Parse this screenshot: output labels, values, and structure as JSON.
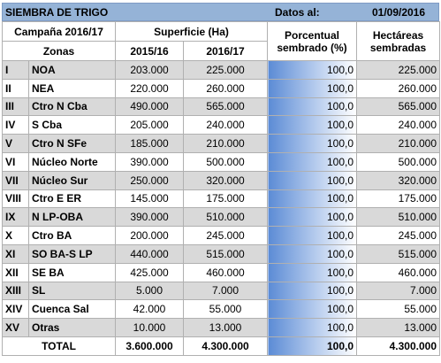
{
  "header": {
    "title": "SIEMBRA DE TRIGO",
    "date_label": "Datos al:",
    "date": "01/09/2016"
  },
  "table": {
    "campaign": "Campaña 2016/17",
    "surface": "Superficie (Ha)",
    "percent": [
      "Porcentual",
      "sembrado (%)"
    ],
    "hectares": [
      "Hectáreas",
      "sembradas"
    ],
    "zones": "Zonas",
    "year1": "2015/16",
    "year2": "2016/17",
    "rows": [
      [
        "I",
        "NOA",
        "203.000",
        "225.000",
        "100,0",
        "225.000"
      ],
      [
        "II",
        "NEA",
        "220.000",
        "260.000",
        "100,0",
        "260.000"
      ],
      [
        "III",
        "Ctro N Cba",
        "490.000",
        "565.000",
        "100,0",
        "565.000"
      ],
      [
        "IV",
        "S Cba",
        "205.000",
        "240.000",
        "100,0",
        "240.000"
      ],
      [
        "V",
        "Ctro N SFe",
        "185.000",
        "210.000",
        "100,0",
        "210.000"
      ],
      [
        "VI",
        "Núcleo Norte",
        "390.000",
        "500.000",
        "100,0",
        "500.000"
      ],
      [
        "VII",
        "Núcleo Sur",
        "250.000",
        "320.000",
        "100,0",
        "320.000"
      ],
      [
        "VIII",
        "Ctro E ER",
        "145.000",
        "175.000",
        "100,0",
        "175.000"
      ],
      [
        "IX",
        "N LP-OBA",
        "390.000",
        "510.000",
        "100,0",
        "510.000"
      ],
      [
        "X",
        "Ctro BA",
        "200.000",
        "245.000",
        "100,0",
        "245.000"
      ],
      [
        "XI",
        "SO BA-S LP",
        "440.000",
        "515.000",
        "100,0",
        "515.000"
      ],
      [
        "XII",
        "SE BA",
        "425.000",
        "460.000",
        "100,0",
        "460.000"
      ],
      [
        "XIII",
        "SL",
        "5.000",
        "7.000",
        "100,0",
        "7.000"
      ],
      [
        "XIV",
        "Cuenca Sal",
        "42.000",
        "55.000",
        "100,0",
        "55.000"
      ],
      [
        "XV",
        "Otras",
        "10.000",
        "13.000",
        "100,0",
        "13.000"
      ]
    ],
    "total": [
      "TOTAL",
      "3.600.000",
      "4.300.000",
      "100,0",
      "4.300.000"
    ]
  }
}
